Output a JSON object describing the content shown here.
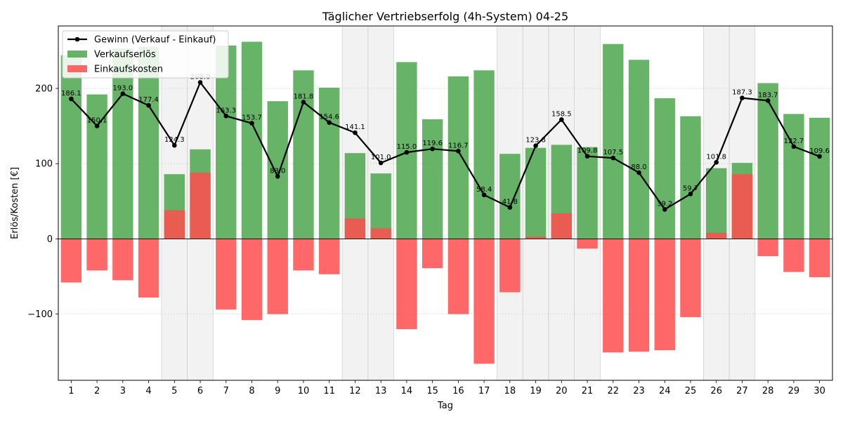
{
  "chart_data": {
    "type": "bar",
    "title": "Täglicher Vertriebserfolg (4h-System) 04-25",
    "xlabel": "Tag",
    "ylabel": "Erlös/Kosten [€]",
    "ylim": [
      -188,
      283
    ],
    "yticks": [
      -100,
      0,
      100,
      200
    ],
    "ytick_labels": [
      "−100",
      "0",
      "100",
      "200"
    ],
    "grid": "horizontal dotted",
    "legend_position": "top-left",
    "categories": [
      "1",
      "2",
      "3",
      "4",
      "5",
      "6",
      "7",
      "8",
      "9",
      "10",
      "11",
      "12",
      "13",
      "14",
      "15",
      "16",
      "17",
      "18",
      "19",
      "20",
      "21",
      "22",
      "23",
      "24",
      "25",
      "26",
      "27",
      "28",
      "29",
      "30"
    ],
    "shaded_days": [
      "5",
      "6",
      "12",
      "13",
      "18",
      "19",
      "20",
      "21",
      "26",
      "27"
    ],
    "series": [
      {
        "name": "Verkaufserlös",
        "kind": "bar",
        "color": "#4ca64c",
        "values": [
          244,
          192,
          253,
          255,
          86,
          119,
          257,
          262,
          183,
          224,
          201,
          114,
          87,
          235,
          159,
          216,
          224,
          113,
          121,
          125,
          122,
          259,
          238,
          187,
          163,
          94,
          101,
          207,
          166,
          161
        ]
      },
      {
        "name": "Einkaufskosten",
        "kind": "bar",
        "color": "#ff4d4d",
        "values": [
          -58,
          -42,
          -55,
          -78,
          38,
          88,
          -94,
          -108,
          -100,
          -42,
          -47,
          27,
          14,
          -120,
          -39,
          -100,
          -166,
          -71,
          3,
          34,
          -13,
          -151,
          -150,
          -148,
          -104,
          8,
          86,
          -23,
          -44,
          -51
        ]
      },
      {
        "name": "Gewinn (Verkauf - Einkauf)",
        "kind": "line",
        "color": "#000000",
        "values": [
          186.1,
          150.1,
          193.0,
          177.4,
          124.3,
          208.0,
          163.3,
          153.7,
          83.0,
          181.8,
          154.6,
          141.1,
          101.0,
          115.0,
          119.6,
          116.7,
          58.4,
          41.8,
          123.8,
          158.5,
          109.8,
          107.5,
          88.0,
          39.2,
          59.7,
          101.8,
          187.3,
          183.7,
          122.7,
          109.6
        ],
        "labels": [
          "186.1",
          "150.1",
          "193.0",
          "177.4",
          "124.3",
          "208.0",
          "163.3",
          "153.7",
          "83.0",
          "181.8",
          "154.6",
          "141.1",
          "101.0",
          "115.0",
          "119.6",
          "116.7",
          "58.4",
          "41.8",
          "123.8",
          "158.5",
          "109.8",
          "107.5",
          "88.0",
          "39.2",
          "59.7",
          "101.8",
          "187.3",
          "183.7",
          "122.7",
          "109.6"
        ]
      }
    ]
  },
  "legend": {
    "items": [
      {
        "label": "Gewinn (Verkauf - Einkauf)",
        "kind": "line",
        "color": "#000000"
      },
      {
        "label": "Verkaufserlös",
        "kind": "bar",
        "color": "#4ca64c"
      },
      {
        "label": "Einkaufskosten",
        "kind": "bar",
        "color": "#ff4d4d"
      }
    ]
  }
}
